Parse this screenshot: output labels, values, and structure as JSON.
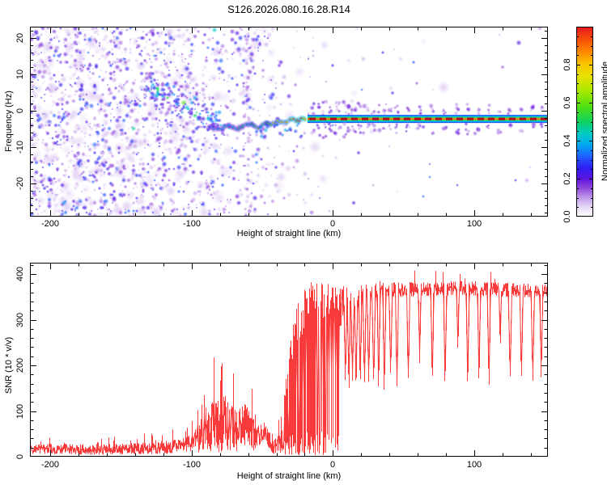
{
  "title": "S126.2026.080.16.28.R14",
  "background": "#ffffff",
  "chart_data": [
    {
      "type": "heatmap",
      "name": "doppler-spectrogram",
      "xlabel": "Height of straight line (km)",
      "ylabel": "Frequency (Hz)",
      "xlim": [
        -214.3,
        152
      ],
      "ylim": [
        -29.2,
        23.1
      ],
      "xticks": [
        -200,
        -100,
        0,
        100
      ],
      "xtick_labels": [
        "-200",
        "-100",
        "0",
        "100"
      ],
      "x_minor_step": 20,
      "yticks": [
        20,
        10,
        0,
        -10,
        -20
      ],
      "ytick_labels": [
        "20",
        "10",
        "0",
        "-10",
        "-20"
      ],
      "y_minor_step": 2,
      "colorbar": {
        "label": "Normalized spectral amplitude",
        "ticks": [
          0,
          0.2,
          0.4,
          0.6,
          0.8
        ],
        "tick_labels": [
          "0.0",
          "0.2",
          "0.4",
          "0.6",
          "0.8"
        ],
        "minor_step": 0.05,
        "range": [
          0,
          1
        ],
        "stops": [
          {
            "v": 0.0,
            "c": "#ffffff"
          },
          {
            "v": 0.05,
            "c": "#e8daf6"
          },
          {
            "v": 0.1,
            "c": "#c09aea"
          },
          {
            "v": 0.15,
            "c": "#9048dc"
          },
          {
            "v": 0.2,
            "c": "#5c14e0"
          },
          {
            "v": 0.26,
            "c": "#2c20f4"
          },
          {
            "v": 0.32,
            "c": "#1e64ff"
          },
          {
            "v": 0.38,
            "c": "#00aaf0"
          },
          {
            "v": 0.44,
            "c": "#00ccc0"
          },
          {
            "v": 0.5,
            "c": "#10d060"
          },
          {
            "v": 0.58,
            "c": "#50e010"
          },
          {
            "v": 0.66,
            "c": "#a8e800"
          },
          {
            "v": 0.74,
            "c": "#e8e000"
          },
          {
            "v": 0.8,
            "c": "#f8c800"
          },
          {
            "v": 0.86,
            "c": "#ff9000"
          },
          {
            "v": 0.93,
            "c": "#f85008"
          },
          {
            "v": 1.0,
            "c": "#e81820"
          }
        ]
      },
      "carrier": {
        "freq_hz": -2.3,
        "start_km": -18,
        "core_color": "#f42326",
        "dash_color": "#bc0020"
      },
      "signal_trace": [
        [
          -88,
          -4.2,
          0.3
        ],
        [
          -81,
          -5.3,
          0.35
        ],
        [
          -75,
          -3.9,
          0.38
        ],
        [
          -69,
          -5.1,
          0.42
        ],
        [
          -63,
          -4.3,
          0.48
        ],
        [
          -58,
          -3.3,
          0.5
        ],
        [
          -53,
          -4.7,
          0.52
        ],
        [
          -48,
          -3.5,
          0.58
        ],
        [
          -44,
          -4.1,
          0.62
        ],
        [
          -39,
          -2.9,
          0.68
        ],
        [
          -34,
          -3.3,
          0.78
        ],
        [
          -29,
          -2.3,
          0.85
        ],
        [
          -25,
          -2.9,
          0.88
        ],
        [
          -21,
          -2.1,
          0.95
        ],
        [
          -18,
          -2.3,
          1.0
        ]
      ],
      "noise": {
        "density": [
          [
            -214,
            0.11
          ],
          [
            -120,
            0.105
          ],
          [
            -60,
            0.055
          ],
          [
            -25,
            0.012
          ],
          [
            5,
            0.004
          ],
          [
            152,
            0.0015
          ]
        ],
        "descent_band": {
          "from": [
            -132,
            7
          ],
          "to": [
            -76,
            -4.5
          ]
        },
        "column_km": -60
      },
      "fuzz_km": [
        -14,
        -10,
        -6,
        -2,
        2,
        5,
        8.5,
        11,
        13.5,
        16,
        19,
        22,
        25,
        28.5,
        32,
        36,
        40.5,
        45,
        53,
        61,
        70,
        79,
        88,
        95,
        103,
        110,
        118,
        125,
        133,
        141,
        147
      ]
    },
    {
      "type": "line",
      "name": "snr-profile",
      "xlabel": "Height of straight line (km)",
      "ylabel": "SNR (10 * v/v)",
      "color": "#f93b3b",
      "xlim": [
        -214.3,
        152
      ],
      "ylim": [
        0,
        425
      ],
      "xticks": [
        -200,
        -100,
        0,
        100
      ],
      "xtick_labels": [
        "-200",
        "-100",
        "0",
        "100"
      ],
      "x_minor_step": 20,
      "yticks": [
        400,
        300,
        200,
        100,
        0
      ],
      "ytick_labels": [
        "400",
        "300",
        "200",
        "100",
        "0"
      ],
      "y_minor_step": 20,
      "envelope_mid": [
        [
          -214,
          16
        ],
        [
          -190,
          17
        ],
        [
          -170,
          15
        ],
        [
          -150,
          17
        ],
        [
          -132,
          18
        ],
        [
          -118,
          20
        ],
        [
          -106,
          25
        ],
        [
          -98,
          33
        ],
        [
          -92,
          44
        ],
        [
          -87,
          62
        ],
        [
          -83,
          80
        ],
        [
          -80,
          58
        ],
        [
          -77,
          85
        ],
        [
          -74,
          62
        ],
        [
          -71,
          70
        ],
        [
          -68,
          56
        ],
        [
          -65,
          66
        ],
        [
          -62,
          72
        ],
        [
          -59,
          58
        ],
        [
          -55,
          44
        ],
        [
          -51,
          47
        ],
        [
          -48,
          54
        ],
        [
          -45,
          32
        ],
        [
          -41,
          26
        ],
        [
          -37,
          30
        ],
        [
          6,
          332
        ],
        [
          12,
          342
        ],
        [
          20,
          354
        ],
        [
          28,
          362
        ],
        [
          40,
          365
        ],
        [
          60,
          367
        ],
        [
          90,
          369
        ],
        [
          120,
          366
        ],
        [
          152,
          362
        ]
      ],
      "envelope_amp": [
        [
          -214,
          11
        ],
        [
          -140,
          12
        ],
        [
          -104,
          16
        ],
        [
          -92,
          34
        ],
        [
          -86,
          55
        ],
        [
          -78,
          58
        ],
        [
          -70,
          48
        ],
        [
          -62,
          45
        ],
        [
          -54,
          30
        ],
        [
          -46,
          20
        ],
        [
          -38,
          22
        ],
        [
          6,
          40
        ],
        [
          12,
          30
        ],
        [
          20,
          22
        ],
        [
          30,
          17
        ],
        [
          152,
          15
        ]
      ],
      "burst": {
        "from": -36,
        "to": 6,
        "p_high": [
          [
            -36,
            0.25
          ],
          [
            -30,
            0.38
          ],
          [
            -24,
            0.5
          ],
          [
            -18,
            0.6
          ],
          [
            -12,
            0.68
          ],
          [
            -6,
            0.75
          ],
          [
            0,
            0.82
          ],
          [
            6,
            0.92
          ]
        ],
        "hi": [
          [
            -36,
            130
          ],
          [
            -32,
            210
          ],
          [
            -28,
            300
          ],
          [
            -24,
            345
          ],
          [
            -20,
            375
          ],
          [
            -14,
            388
          ],
          [
            -8,
            380
          ],
          [
            0,
            390
          ],
          [
            6,
            382
          ]
        ],
        "low": [
          3,
          55
        ]
      },
      "dropouts": [
        [
          8.5,
          150
        ],
        [
          11,
          142
        ],
        [
          13.5,
          154
        ],
        [
          16,
          146
        ],
        [
          19,
          150
        ],
        [
          22,
          140
        ],
        [
          25,
          150
        ],
        [
          28.5,
          146
        ],
        [
          32,
          150
        ],
        [
          36,
          144
        ],
        [
          40.5,
          156
        ],
        [
          45,
          148
        ],
        [
          53,
          152
        ],
        [
          61,
          195
        ],
        [
          70,
          156
        ],
        [
          79,
          150
        ],
        [
          88,
          215
        ],
        [
          95,
          152
        ],
        [
          103,
          162
        ],
        [
          110,
          148
        ],
        [
          118,
          225
        ],
        [
          125,
          152
        ],
        [
          133,
          158
        ],
        [
          141,
          150
        ],
        [
          147,
          165
        ]
      ]
    }
  ]
}
